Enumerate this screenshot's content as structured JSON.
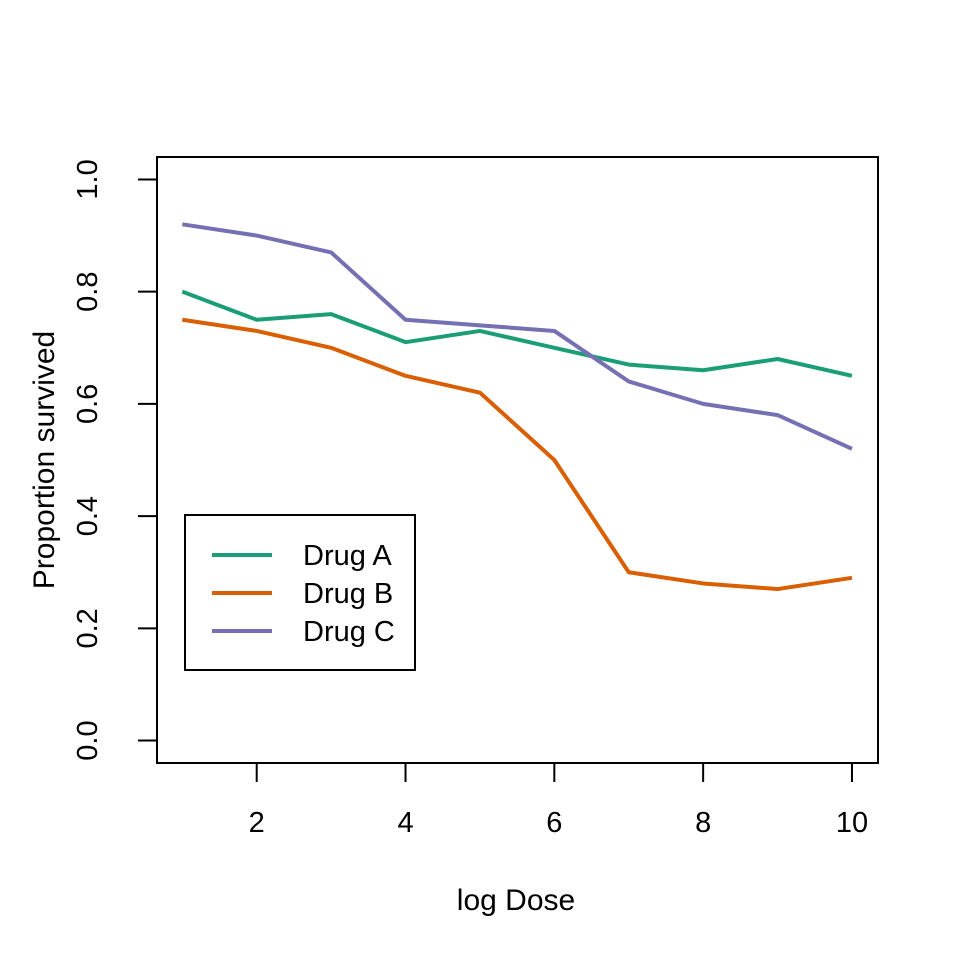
{
  "figure": {
    "background": "#ffffff",
    "axis_color": "#000000",
    "text_color": "#000000"
  },
  "chart_data": {
    "type": "line",
    "title": "",
    "xlabel": "log Dose",
    "ylabel": "Proportion survived",
    "x": [
      1,
      2,
      3,
      4,
      5,
      6,
      7,
      8,
      9,
      10
    ],
    "series": [
      {
        "name": "Drug A",
        "color": "#1B9E77",
        "values": [
          0.8,
          0.75,
          0.76,
          0.71,
          0.73,
          0.7,
          0.67,
          0.66,
          0.68,
          0.65
        ]
      },
      {
        "name": "Drug B",
        "color": "#D95F02",
        "values": [
          0.75,
          0.73,
          0.7,
          0.65,
          0.62,
          0.5,
          0.3,
          0.28,
          0.27,
          0.29
        ]
      },
      {
        "name": "Drug C",
        "color": "#7570B3",
        "values": [
          0.92,
          0.9,
          0.87,
          0.75,
          0.74,
          0.73,
          0.64,
          0.6,
          0.58,
          0.52
        ]
      }
    ],
    "x_ticks": [
      2,
      4,
      6,
      8,
      10
    ],
    "x_tick_labels": [
      "2",
      "4",
      "6",
      "8",
      "10"
    ],
    "y_ticks": [
      0.0,
      0.2,
      0.4,
      0.6,
      0.8,
      1.0
    ],
    "y_tick_labels": [
      "0.0",
      "0.2",
      "0.4",
      "0.6",
      "0.8",
      "1.0"
    ],
    "xlim": [
      0.66,
      10.35
    ],
    "ylim": [
      -0.04,
      1.04
    ],
    "grid": false,
    "legend": {
      "position": "left-middle",
      "entries": [
        "Drug A",
        "Drug B",
        "Drug C"
      ]
    }
  }
}
